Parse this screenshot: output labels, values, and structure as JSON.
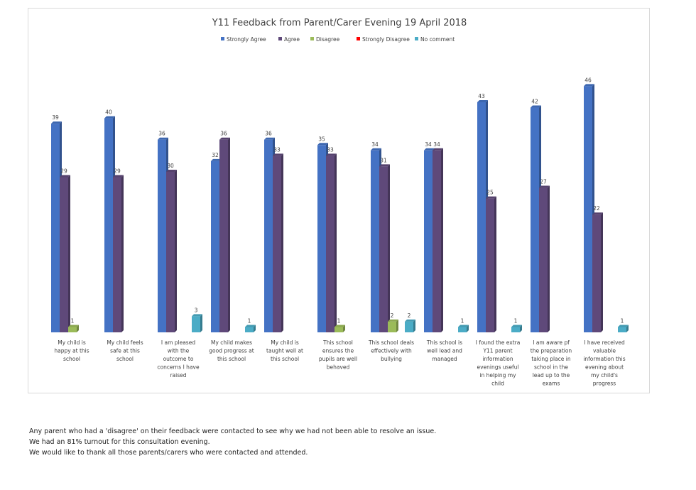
{
  "chart_data": {
    "type": "bar",
    "title": "Y11 Feedback from Parent/Carer Evening 19 April 2018",
    "legend_position": "top",
    "grid": false,
    "ylim": [
      0,
      50
    ],
    "categories": [
      [
        "My child is",
        "happy at this",
        "school"
      ],
      [
        "My child feels",
        "safe at this",
        "school"
      ],
      [
        "I am pleased",
        "with the",
        "outcome to",
        "concerns I have",
        "raised"
      ],
      [
        "My child makes",
        "good progress at",
        "this school"
      ],
      [
        "My child is",
        "taught well at",
        "this school"
      ],
      [
        "This school",
        "ensures the",
        "pupils are well",
        "behaved"
      ],
      [
        "This school deals",
        "effectively with",
        "bullying"
      ],
      [
        "This school is",
        "well lead and",
        "managed"
      ],
      [
        "I found the extra",
        "Y11 parent",
        "information",
        "evenings useful",
        "in helping my",
        "child"
      ],
      [
        "I am aware pf",
        "the preparation",
        "taking place in",
        "school in the",
        "lead up to the",
        "exams"
      ],
      [
        "I have received",
        "valuable",
        "information this",
        "evening about",
        "my child's",
        "progress"
      ]
    ],
    "series": [
      {
        "name": "Strongly Agree",
        "color": "#4472c4",
        "values": [
          39,
          40,
          36,
          32,
          36,
          35,
          34,
          34,
          43,
          42,
          46
        ]
      },
      {
        "name": "Agree",
        "color": "#5f497a",
        "values": [
          29,
          29,
          30,
          36,
          33,
          33,
          31,
          34,
          25,
          27,
          22
        ]
      },
      {
        "name": "Disagree",
        "color": "#9bbb59",
        "values": [
          1,
          null,
          null,
          null,
          null,
          1,
          2,
          null,
          null,
          null,
          null
        ]
      },
      {
        "name": "Strongly Disagree",
        "color": "#ff0000",
        "values": [
          null,
          null,
          null,
          null,
          null,
          null,
          null,
          null,
          null,
          null,
          null
        ]
      },
      {
        "name": "No comment",
        "color": "#4bacc6",
        "values": [
          null,
          null,
          3,
          1,
          null,
          null,
          2,
          1,
          1,
          null,
          1
        ]
      }
    ]
  },
  "notes": [
    "Any parent who had a 'disagree' on their feedback were contacted to see why we had not been able to resolve an issue.",
    "We had an 81% turnout for this consultation evening.",
    "We would like to thank all those parents/carers who were contacted and attended."
  ]
}
